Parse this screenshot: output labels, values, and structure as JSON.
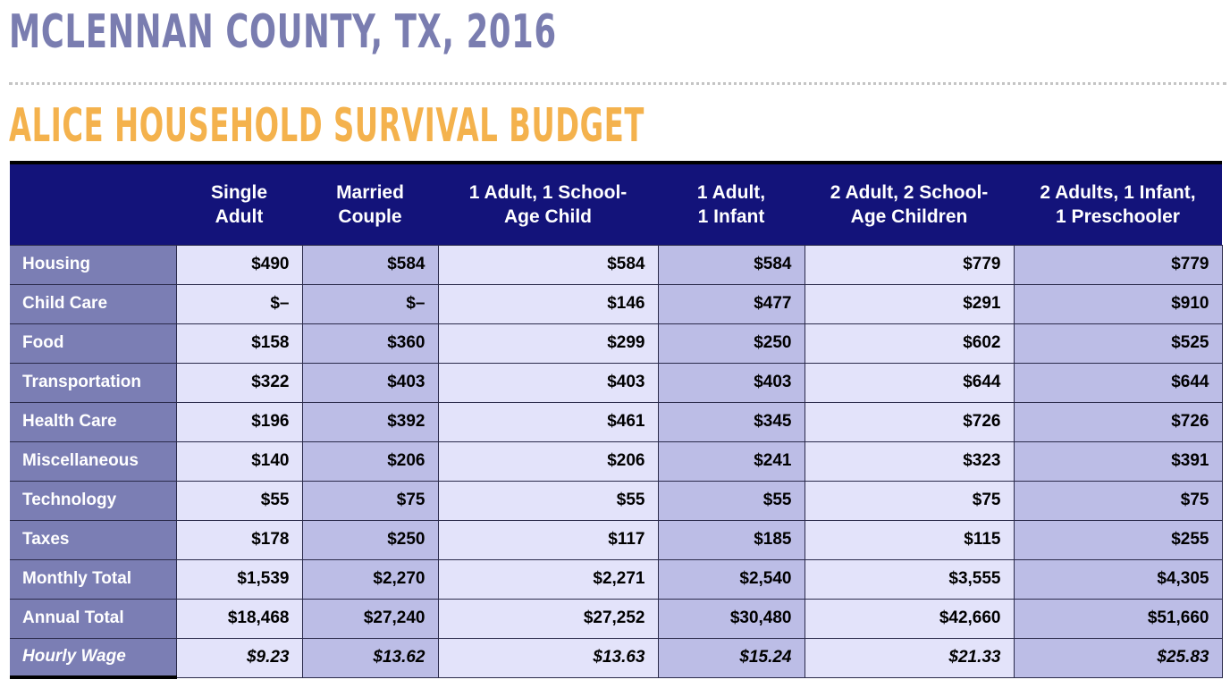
{
  "header": {
    "county_title": "MCLENNAN COUNTY, TX, 2016",
    "section_title": "ALICE HOUSEHOLD SURVIVAL BUDGET"
  },
  "table": {
    "columns": [
      {
        "line1": "Single",
        "line2": "Adult"
      },
      {
        "line1": "Married",
        "line2": "Couple"
      },
      {
        "line1": "1 Adult, 1 School-",
        "line2": "Age Child"
      },
      {
        "line1": "1 Adult,",
        "line2": "1 Infant"
      },
      {
        "line1": "2 Adult, 2 School-",
        "line2": "Age Children"
      },
      {
        "line1": "2 Adults, 1 Infant,",
        "line2": "1 Preschooler"
      }
    ],
    "rows": [
      {
        "label": "Housing",
        "values": [
          "$490",
          "$584",
          "$584",
          "$584",
          "$779",
          "$779"
        ]
      },
      {
        "label": "Child Care",
        "values": [
          "$–",
          "$–",
          "$146",
          "$477",
          "$291",
          "$910"
        ]
      },
      {
        "label": "Food",
        "values": [
          "$158",
          "$360",
          "$299",
          "$250",
          "$602",
          "$525"
        ]
      },
      {
        "label": "Transportation",
        "values": [
          "$322",
          "$403",
          "$403",
          "$403",
          "$644",
          "$644"
        ]
      },
      {
        "label": "Health Care",
        "values": [
          "$196",
          "$392",
          "$461",
          "$345",
          "$726",
          "$726"
        ]
      },
      {
        "label": "Miscellaneous",
        "values": [
          "$140",
          "$206",
          "$206",
          "$241",
          "$323",
          "$391"
        ]
      },
      {
        "label": "Technology",
        "values": [
          "$55",
          "$75",
          "$55",
          "$55",
          "$75",
          "$75"
        ]
      },
      {
        "label": "Taxes",
        "values": [
          "$178",
          "$250",
          "$117",
          "$185",
          "$115",
          "$255"
        ]
      },
      {
        "label": "Monthly Total",
        "values": [
          "$1,539",
          "$2,270",
          "$2,271",
          "$2,540",
          "$3,555",
          "$4,305"
        ]
      },
      {
        "label": "Annual Total",
        "values": [
          "$18,468",
          "$27,240",
          "$27,252",
          "$30,480",
          "$42,660",
          "$51,660"
        ]
      },
      {
        "label": "Hourly Wage",
        "values": [
          "$9.23",
          "$13.62",
          "$13.63",
          "$15.24",
          "$21.33",
          "$25.83"
        ]
      }
    ]
  },
  "colors": {
    "county_title": "#7a7db0",
    "section_title": "#f4b24d",
    "header_bg": "#13137a",
    "row_label_bg": "#7b7eb4",
    "cell_light": "#e3e3fa",
    "cell_dark": "#bcbde6"
  }
}
